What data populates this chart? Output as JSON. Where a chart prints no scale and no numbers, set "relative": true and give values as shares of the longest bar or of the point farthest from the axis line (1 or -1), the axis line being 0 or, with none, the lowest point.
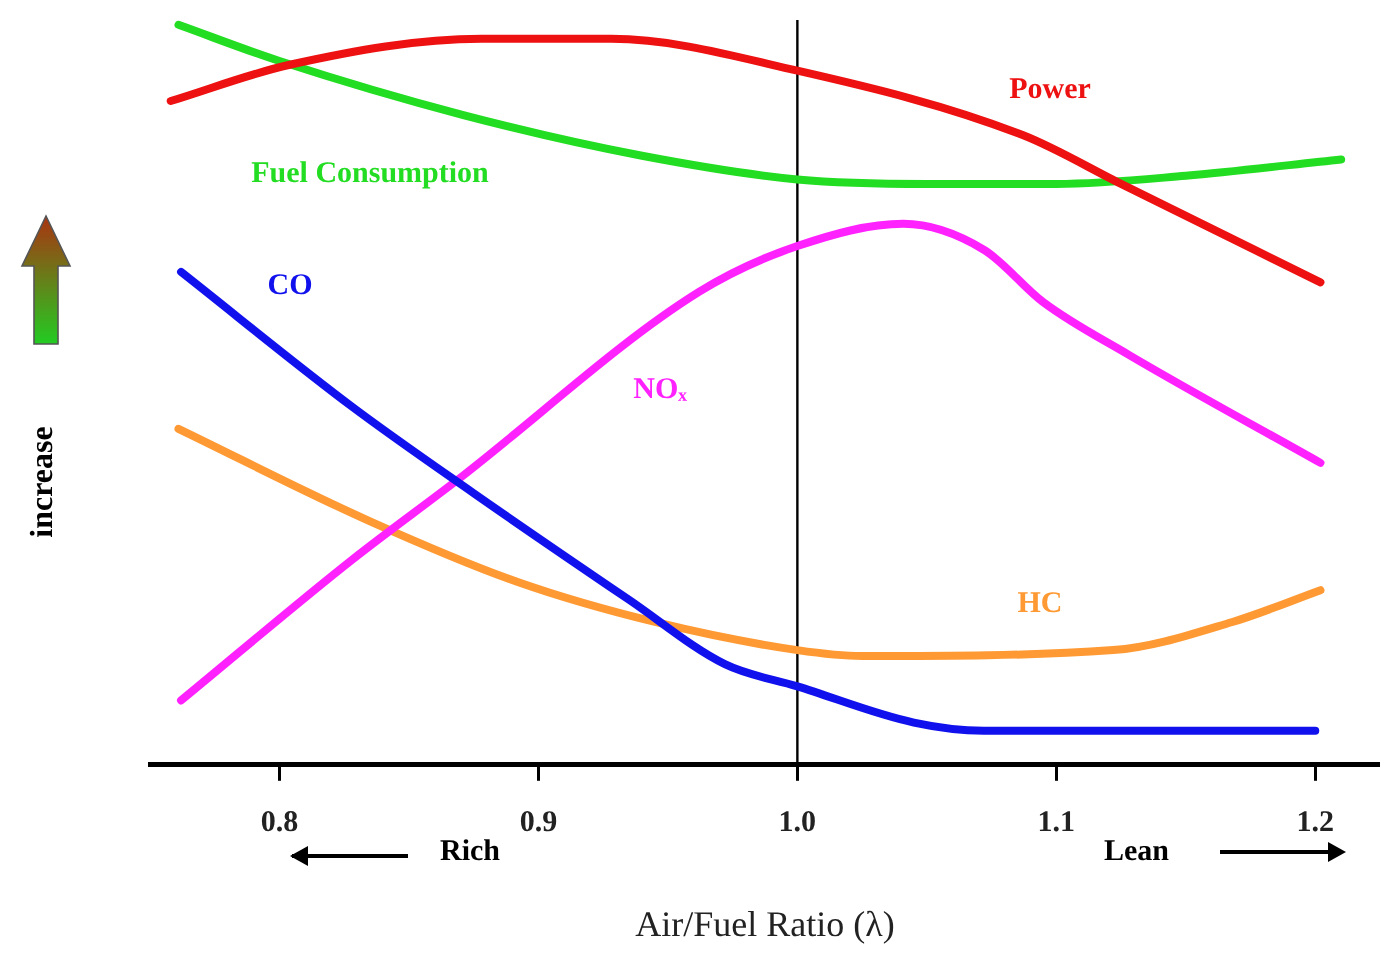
{
  "chart_data": {
    "type": "line",
    "relative": true,
    "xlabel": "Air/Fuel Ratio (λ)",
    "ylabel": "increase",
    "xlim": [
      0.75,
      1.225
    ],
    "xticks": [
      {
        "value": 0.8,
        "label": "0.8"
      },
      {
        "value": 0.9,
        "label": "0.9"
      },
      {
        "value": 1.0,
        "label": "1.0"
      },
      {
        "value": 1.1,
        "label": "1.1"
      },
      {
        "value": 1.2,
        "label": "1.2"
      }
    ],
    "grid": false,
    "legend": false,
    "marker": "none",
    "line_style": "solid",
    "ref_lines": [
      {
        "axis": "x",
        "value": 1.0,
        "color": "#000000"
      }
    ],
    "annotations": [
      "Rich",
      "Lean"
    ],
    "series": [
      {
        "name": "Power",
        "color": "#ee1111",
        "x": [
          0.758,
          0.804,
          0.878,
          0.928,
          1.0,
          1.087,
          1.125,
          1.202
        ],
        "values": [
          0.897,
          0.946,
          0.981,
          0.981,
          0.938,
          0.851,
          0.785,
          0.652
        ]
      },
      {
        "name": "Fuel Consumption",
        "color": "#22dd22",
        "x": [
          0.761,
          0.8,
          0.871,
          0.94,
          1.0,
          1.05,
          1.1,
          1.15,
          1.21
        ],
        "values": [
          1.0,
          0.951,
          0.878,
          0.823,
          0.791,
          0.785,
          0.785,
          0.796,
          0.818
        ]
      },
      {
        "name": "CO",
        "color": "#1111ee",
        "x": [
          0.762,
          0.828,
          0.875,
          0.935,
          0.972,
          1.0,
          1.045,
          1.072,
          1.2
        ],
        "values": [
          0.666,
          0.484,
          0.367,
          0.223,
          0.136,
          0.106,
          0.057,
          0.046,
          0.046
        ]
      },
      {
        "name": "NOₓ",
        "color": "#ff22ff",
        "x": [
          0.762,
          0.828,
          0.868,
          0.962,
          1.0,
          1.041,
          1.072,
          1.095,
          1.128,
          1.202
        ],
        "values": [
          0.087,
          0.277,
          0.383,
          0.639,
          0.701,
          0.731,
          0.696,
          0.625,
          0.554,
          0.408
        ]
      },
      {
        "name": "HC",
        "color": "#ff9933",
        "x": [
          0.761,
          0.835,
          0.892,
          0.945,
          1.0,
          1.025,
          1.122,
          1.168,
          1.202
        ],
        "values": [
          0.454,
          0.329,
          0.247,
          0.193,
          0.155,
          0.147,
          0.155,
          0.193,
          0.236
        ]
      }
    ]
  }
}
